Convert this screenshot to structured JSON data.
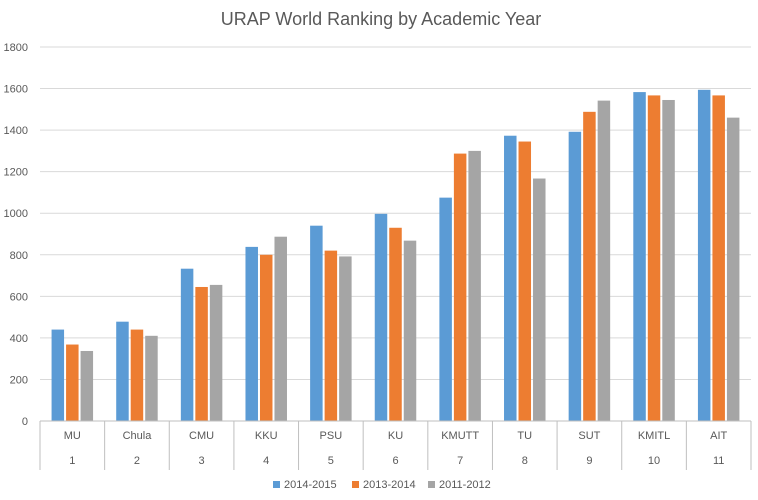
{
  "chart_data": {
    "type": "bar",
    "title": "URAP World Ranking by Academic Year",
    "categories": [
      "MU",
      "Chula",
      "CMU",
      "KKU",
      "PSU",
      "KU",
      "KMUTT",
      "TU",
      "SUT",
      "KMITL",
      "AIT"
    ],
    "ranks": [
      "1",
      "2",
      "3",
      "4",
      "5",
      "6",
      "7",
      "8",
      "9",
      "10",
      "11"
    ],
    "series": [
      {
        "name": "2014-2015",
        "color": "#5B9BD5",
        "values": [
          440,
          478,
          733,
          838,
          940,
          997,
          1075,
          1373,
          1392,
          1583,
          1594
        ]
      },
      {
        "name": "2013-2014",
        "color": "#ED7D31",
        "values": [
          368,
          440,
          645,
          800,
          820,
          930,
          1287,
          1345,
          1488,
          1567,
          1567
        ]
      },
      {
        "name": "2011-2012",
        "color": "#A5A5A5",
        "values": [
          337,
          410,
          655,
          887,
          792,
          868,
          1300,
          1167,
          1542,
          1545,
          1460
        ]
      }
    ],
    "ylim": [
      0,
      1800
    ],
    "yticks": [
      "0",
      "200",
      "400",
      "600",
      "800",
      "1000",
      "1200",
      "1400",
      "1600",
      "1800"
    ],
    "grid": true,
    "legend_position": "bottom"
  }
}
